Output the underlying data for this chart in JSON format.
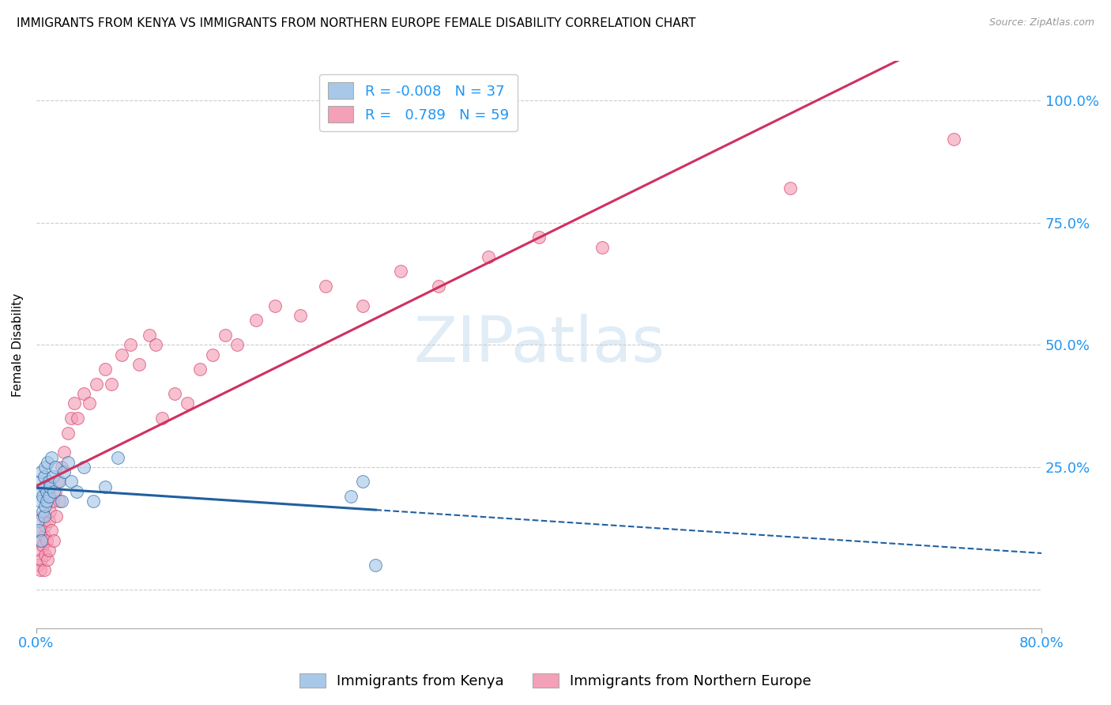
{
  "title": "IMMIGRANTS FROM KENYA VS IMMIGRANTS FROM NORTHERN EUROPE FEMALE DISABILITY CORRELATION CHART",
  "source": "Source: ZipAtlas.com",
  "ylabel": "Female Disability",
  "legend_label_kenya": "Immigrants from Kenya",
  "legend_label_northern": "Immigrants from Northern Europe",
  "legend_line1": "R = -0.008   N = 37",
  "legend_line2": "R =   0.789   N = 59",
  "color_kenya": "#a8c8e8",
  "color_northern": "#f4a0b8",
  "color_line_kenya": "#2060a0",
  "color_line_northern": "#d03060",
  "watermark": "ZIPatlas",
  "kenya_x": [
    0.001,
    0.002,
    0.002,
    0.003,
    0.003,
    0.004,
    0.004,
    0.005,
    0.005,
    0.006,
    0.006,
    0.006,
    0.007,
    0.007,
    0.008,
    0.008,
    0.009,
    0.01,
    0.01,
    0.011,
    0.012,
    0.013,
    0.014,
    0.015,
    0.018,
    0.02,
    0.022,
    0.025,
    0.028,
    0.032,
    0.038,
    0.045,
    0.055,
    0.065,
    0.25,
    0.26,
    0.27
  ],
  "kenya_y": [
    0.14,
    0.12,
    0.2,
    0.18,
    0.22,
    0.1,
    0.24,
    0.19,
    0.16,
    0.21,
    0.23,
    0.15,
    0.17,
    0.25,
    0.2,
    0.18,
    0.26,
    0.22,
    0.19,
    0.21,
    0.27,
    0.23,
    0.2,
    0.25,
    0.22,
    0.18,
    0.24,
    0.26,
    0.22,
    0.2,
    0.25,
    0.18,
    0.21,
    0.27,
    0.19,
    0.22,
    0.05
  ],
  "northern_x": [
    0.001,
    0.002,
    0.002,
    0.003,
    0.004,
    0.004,
    0.005,
    0.005,
    0.006,
    0.006,
    0.007,
    0.007,
    0.008,
    0.009,
    0.01,
    0.01,
    0.011,
    0.012,
    0.013,
    0.014,
    0.015,
    0.016,
    0.017,
    0.018,
    0.02,
    0.022,
    0.025,
    0.028,
    0.03,
    0.033,
    0.038,
    0.042,
    0.048,
    0.055,
    0.06,
    0.068,
    0.075,
    0.082,
    0.09,
    0.095,
    0.1,
    0.11,
    0.12,
    0.13,
    0.14,
    0.15,
    0.16,
    0.175,
    0.19,
    0.21,
    0.23,
    0.26,
    0.29,
    0.32,
    0.36,
    0.4,
    0.45,
    0.6,
    0.73
  ],
  "northern_y": [
    0.05,
    0.08,
    0.1,
    0.04,
    0.06,
    0.12,
    0.09,
    0.15,
    0.04,
    0.11,
    0.07,
    0.13,
    0.1,
    0.06,
    0.14,
    0.08,
    0.16,
    0.12,
    0.18,
    0.1,
    0.2,
    0.15,
    0.22,
    0.18,
    0.25,
    0.28,
    0.32,
    0.35,
    0.38,
    0.35,
    0.4,
    0.38,
    0.42,
    0.45,
    0.42,
    0.48,
    0.5,
    0.46,
    0.52,
    0.5,
    0.35,
    0.4,
    0.38,
    0.45,
    0.48,
    0.52,
    0.5,
    0.55,
    0.58,
    0.56,
    0.62,
    0.58,
    0.65,
    0.62,
    0.68,
    0.72,
    0.7,
    0.82,
    0.92
  ],
  "xlim": [
    0.0,
    0.8
  ],
  "ylim": [
    -0.08,
    1.08
  ],
  "x_ticks": [
    0.0,
    0.8
  ],
  "y_ticks": [
    0.0,
    0.25,
    0.5,
    0.75,
    1.0
  ],
  "kenya_line_solid_end": 0.27,
  "kenya_line_y_intercept": 0.195,
  "kenya_line_slope": -0.005,
  "northern_line_x0": -0.015,
  "northern_line_y0": 0.0,
  "northern_line_slope": 1.27
}
